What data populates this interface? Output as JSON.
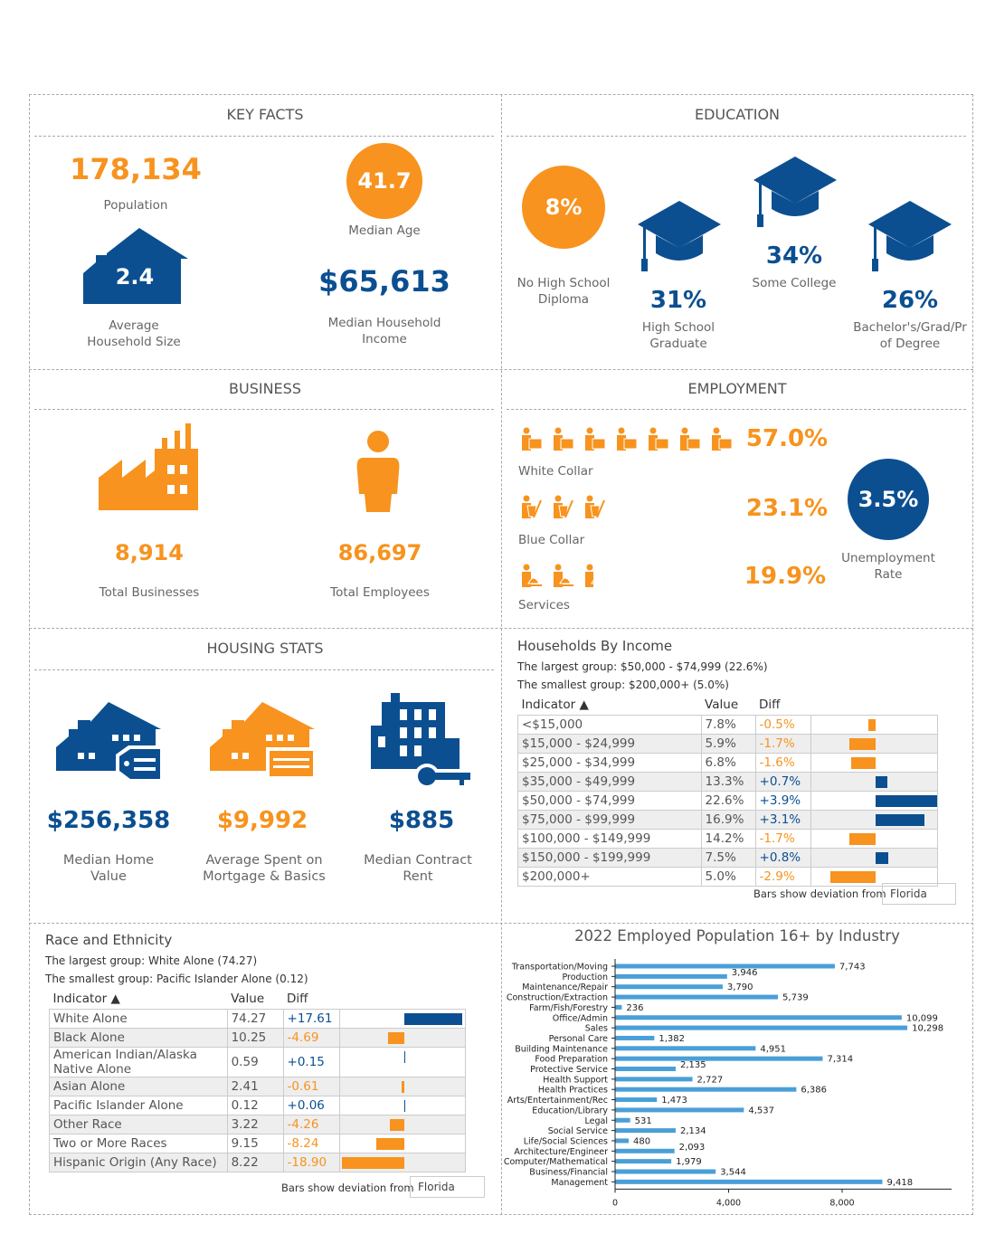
{
  "colors": {
    "orange": "#F7931E",
    "blue": "#0B4F91",
    "bar": "#4A9FD8"
  },
  "key_facts": {
    "title": "KEY FACTS",
    "population": "178,134",
    "population_label": "Population",
    "median_age": "41.7",
    "median_age_label": "Median Age",
    "household_size": "2.4",
    "household_size_label": "Average Household Size",
    "median_income": "$65,613",
    "median_income_label": "Median Household Income"
  },
  "education": {
    "title": "EDUCATION",
    "items": [
      {
        "value": "8%",
        "label": "No High School Diploma"
      },
      {
        "value": "31%",
        "label": "High School Graduate"
      },
      {
        "value": "34%",
        "label": "Some College"
      },
      {
        "value": "26%",
        "label": "Bachelor's/Grad/Pr of Degree"
      }
    ]
  },
  "business": {
    "title": "BUSINESS",
    "businesses": "8,914",
    "businesses_label": "Total Businesses",
    "employees": "86,697",
    "employees_label": "Total Employees"
  },
  "employment": {
    "title": "EMPLOYMENT",
    "white_collar": "57.0%",
    "white_collar_label": "White Collar",
    "blue_collar": "23.1%",
    "blue_collar_label": "Blue Collar",
    "services": "19.9%",
    "services_label": "Services",
    "unemployment": "3.5%",
    "unemployment_label": "Unemployment Rate"
  },
  "housing": {
    "title": "HOUSING STATS",
    "home_value": "$256,358",
    "home_value_label": "Median Home Value",
    "mortgage": "$9,992",
    "mortgage_label": "Average Spent on Mortgage & Basics",
    "rent": "$885",
    "rent_label": "Median Contract Rent"
  },
  "income": {
    "title": "Households By Income",
    "largest": "The largest group: $50,000 - $74,999 (22.6%)",
    "smallest": "The smallest group: $200,000+ (5.0%)",
    "headers": [
      "Indicator ▲",
      "Value",
      "Diff"
    ],
    "rows": [
      [
        "<$15,000",
        "7.8%",
        "-0.5%",
        -0.5
      ],
      [
        "$15,000 - $24,999",
        "5.9%",
        "-1.7%",
        -1.7
      ],
      [
        "$25,000 - $34,999",
        "6.8%",
        "-1.6%",
        -1.6
      ],
      [
        "$35,000 - $49,999",
        "13.3%",
        "+0.7%",
        0.7
      ],
      [
        "$50,000 - $74,999",
        "22.6%",
        "+3.9%",
        3.9
      ],
      [
        "$75,000 - $99,999",
        "16.9%",
        "+3.1%",
        3.1
      ],
      [
        "$100,000 - $149,999",
        "14.2%",
        "-1.7%",
        -1.7
      ],
      [
        "$150,000 - $199,999",
        "7.5%",
        "+0.8%",
        0.8
      ],
      [
        "$200,000+",
        "5.0%",
        "-2.9%",
        -2.9
      ]
    ],
    "deviation_label": "Bars show deviation from",
    "deviation_value": "Florida"
  },
  "race": {
    "title": "Race and Ethnicity",
    "largest": "The largest group: White Alone (74.27)",
    "smallest": "The smallest group: Pacific Islander Alone (0.12)",
    "headers": [
      "Indicator ▲",
      "Value",
      "Diff"
    ],
    "rows": [
      [
        "White Alone",
        "74.27",
        "+17.61",
        17.61
      ],
      [
        "Black Alone",
        "10.25",
        "-4.69",
        -4.69
      ],
      [
        "American Indian/Alaska Native Alone",
        "0.59",
        "+0.15",
        0.15
      ],
      [
        "Asian Alone",
        "2.41",
        "-0.61",
        -0.61
      ],
      [
        "Pacific Islander Alone",
        "0.12",
        "+0.06",
        0.06
      ],
      [
        "Other Race",
        "3.22",
        "-4.26",
        -4.26
      ],
      [
        "Two or More Races",
        "9.15",
        "-8.24",
        -8.24
      ],
      [
        "Hispanic Origin (Any Race)",
        "8.22",
        "-18.90",
        -18.9
      ]
    ],
    "deviation_label": "Bars show deviation from",
    "deviation_value": "Florida"
  },
  "chart_data": {
    "type": "bar",
    "orientation": "horizontal",
    "title": "2022 Employed Population 16+ by Industry",
    "categories": [
      "Transportation/Moving",
      "Production",
      "Maintenance/Repair",
      "Construction/Extraction",
      "Farm/Fish/Forestry",
      "Office/Admin",
      "Sales",
      "Personal Care",
      "Building Maintenance",
      "Food Preparation",
      "Protective Service",
      "Health Support",
      "Health Practices",
      "Arts/Entertainment/Rec",
      "Education/Library",
      "Legal",
      "Social Service",
      "Life/Social Sciences",
      "Architecture/Engineer",
      "Computer/Mathematical",
      "Business/Financial",
      "Management"
    ],
    "values": [
      7743,
      3946,
      3790,
      5739,
      236,
      10099,
      10298,
      1382,
      4951,
      7314,
      2135,
      2727,
      6386,
      1473,
      4537,
      531,
      2134,
      480,
      2093,
      1979,
      3544,
      9418
    ],
    "labels": [
      "7,743",
      "3,946",
      "3,790",
      "5,739",
      "236",
      "10,099",
      "10,298",
      "1,382",
      "4,951",
      "7,314",
      "2,135",
      "2,727",
      "6,386",
      "1,473",
      "4,537",
      "531",
      "2,134",
      "480",
      "2,093",
      "1,979",
      "3,544",
      "9,418"
    ],
    "xticks": [
      "0",
      "4,000",
      "8,000"
    ],
    "xlim": [
      0,
      11800
    ],
    "grid": false
  }
}
